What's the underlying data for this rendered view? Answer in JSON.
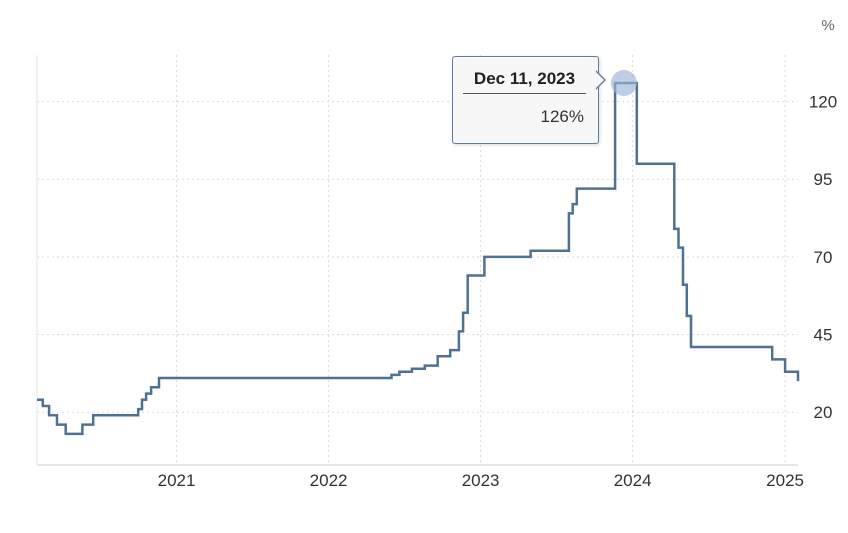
{
  "chart_data": {
    "type": "line",
    "step": true,
    "unit": "%",
    "xlim": [
      "2020-02-01",
      "2025-02-01"
    ],
    "ylim": [
      3,
      135
    ],
    "x_ticks": [
      {
        "date": "2021-01-01",
        "label": "2021"
      },
      {
        "date": "2022-01-01",
        "label": "2022"
      },
      {
        "date": "2023-01-01",
        "label": "2023"
      },
      {
        "date": "2024-01-01",
        "label": "2024"
      },
      {
        "date": "2025-01-01",
        "label": "2025"
      }
    ],
    "y_ticks": [
      20,
      45,
      70,
      95,
      120
    ],
    "grid": "dotted",
    "color": "#4f7194",
    "series": [
      {
        "points": [
          [
            "2020-02-01",
            24.0
          ],
          [
            "2020-02-15",
            22.0
          ],
          [
            "2020-03-01",
            19.0
          ],
          [
            "2020-03-20",
            16.0
          ],
          [
            "2020-04-10",
            13.0
          ],
          [
            "2020-05-20",
            16.0
          ],
          [
            "2020-06-15",
            19.0
          ],
          [
            "2020-10-01",
            21.0
          ],
          [
            "2020-10-10",
            24.0
          ],
          [
            "2020-10-20",
            26.0
          ],
          [
            "2020-11-01",
            28.0
          ],
          [
            "2020-11-20",
            31.0
          ],
          [
            "2022-06-01",
            32.0
          ],
          [
            "2022-06-20",
            33.0
          ],
          [
            "2022-07-20",
            34.0
          ],
          [
            "2022-08-20",
            35.0
          ],
          [
            "2022-09-20",
            38.0
          ],
          [
            "2022-10-20",
            40.0
          ],
          [
            "2022-11-10",
            46.0
          ],
          [
            "2022-11-20",
            52.0
          ],
          [
            "2022-12-01",
            64.0
          ],
          [
            "2023-01-10",
            70.0
          ],
          [
            "2023-05-01",
            72.0
          ],
          [
            "2023-08-01",
            84.0
          ],
          [
            "2023-08-10",
            87.0
          ],
          [
            "2023-08-20",
            92.0
          ],
          [
            "2023-11-20",
            126.0
          ],
          [
            "2024-01-10",
            126.0
          ],
          [
            "2024-01-11",
            100.0
          ],
          [
            "2024-04-10",
            79.0
          ],
          [
            "2024-04-20",
            73.0
          ],
          [
            "2024-05-01",
            61.0
          ],
          [
            "2024-05-10",
            51.0
          ],
          [
            "2024-05-20",
            41.0
          ],
          [
            "2024-12-01",
            37.0
          ],
          [
            "2025-01-01",
            33.0
          ],
          [
            "2025-02-01",
            30.0
          ]
        ]
      }
    ],
    "highlight": {
      "date": "2023-12-11",
      "value": 126
    }
  },
  "tooltip": {
    "date_label": "Dec 11, 2023",
    "value_label": "126%"
  }
}
